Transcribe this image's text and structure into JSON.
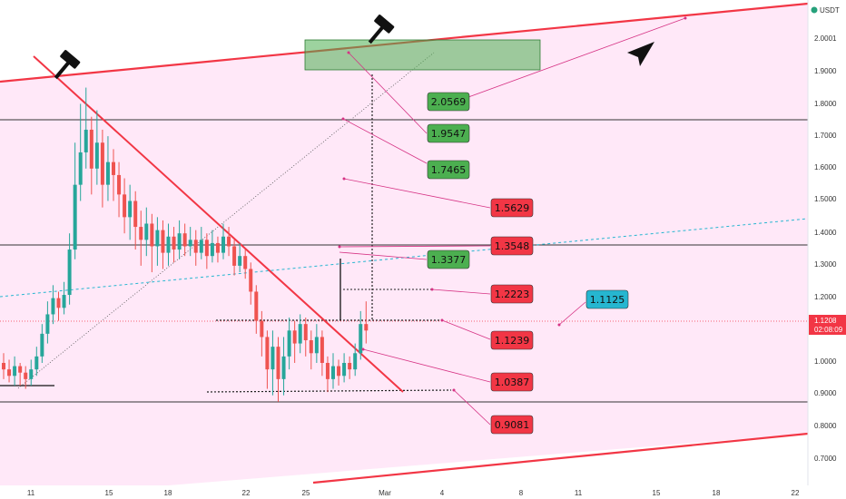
{
  "chart_data": {
    "type": "candlestick",
    "quote_unit": "USDT",
    "y_ticks": [
      "2.0001",
      "1.9000",
      "1.8000",
      "1.7000",
      "1.6000",
      "1.5000",
      "1.4000",
      "1.3000",
      "1.2000",
      "1.1000",
      "1.0000",
      "0.9000",
      "0.8000",
      "0.7000"
    ],
    "x_ticks": [
      "11",
      "15",
      "18",
      "22",
      "25",
      "Mar",
      "4",
      "8",
      "11",
      "15",
      "18",
      "22"
    ],
    "current_price": "1.1208",
    "countdown": "02:08:09",
    "price_labels": [
      {
        "text": "2.0569",
        "color": "#4caf50"
      },
      {
        "text": "1.9547",
        "color": "#4caf50"
      },
      {
        "text": "1.7465",
        "color": "#4caf50"
      },
      {
        "text": "1.5629",
        "color": "#f23645"
      },
      {
        "text": "1.3548",
        "color": "#f23645"
      },
      {
        "text": "1.3377",
        "color": "#4caf50"
      },
      {
        "text": "1.2223",
        "color": "#f23645"
      },
      {
        "text": "1.1125",
        "color": "#26b6d0"
      },
      {
        "text": "1.1239",
        "color": "#f23645"
      },
      {
        "text": "1.0387",
        "color": "#f23645"
      },
      {
        "text": "0.9081",
        "color": "#f23645"
      }
    ],
    "horizontal_levels": [
      1.75,
      1.355,
      0.873,
      0.922
    ],
    "target_zone": {
      "low": 1.9,
      "high": 1.995
    },
    "colors": {
      "up": "#26a69a",
      "down": "#ef5350",
      "channel": "#f23645",
      "background": "#ffe8f8",
      "highlight": "#4caf50"
    },
    "icons": [
      "gavel-icon",
      "gavel-icon",
      "arrow-cursor-icon"
    ],
    "candles": [
      [
        1.0,
        0.98,
        1.03,
        0.95
      ],
      [
        0.98,
        0.96,
        1.01,
        0.94
      ],
      [
        0.96,
        0.99,
        1.02,
        0.93
      ],
      [
        0.99,
        0.97,
        1.0,
        0.93
      ],
      [
        0.97,
        0.95,
        0.99,
        0.92
      ],
      [
        0.95,
        0.98,
        1.01,
        0.93
      ],
      [
        0.98,
        1.02,
        1.05,
        0.96
      ],
      [
        1.02,
        1.09,
        1.12,
        1.0
      ],
      [
        1.09,
        1.15,
        1.19,
        1.06
      ],
      [
        1.15,
        1.2,
        1.24,
        1.12
      ],
      [
        1.2,
        1.17,
        1.22,
        1.13
      ],
      [
        1.17,
        1.21,
        1.25,
        1.15
      ],
      [
        1.21,
        1.35,
        1.4,
        1.18
      ],
      [
        1.35,
        1.55,
        1.68,
        1.32
      ],
      [
        1.55,
        1.65,
        1.8,
        1.5
      ],
      [
        1.65,
        1.72,
        1.85,
        1.6
      ],
      [
        1.72,
        1.6,
        1.76,
        1.52
      ],
      [
        1.6,
        1.68,
        1.78,
        1.55
      ],
      [
        1.68,
        1.55,
        1.72,
        1.48
      ],
      [
        1.55,
        1.62,
        1.7,
        1.5
      ],
      [
        1.62,
        1.58,
        1.66,
        1.5
      ],
      [
        1.58,
        1.52,
        1.62,
        1.45
      ],
      [
        1.52,
        1.45,
        1.57,
        1.4
      ],
      [
        1.45,
        1.5,
        1.55,
        1.38
      ],
      [
        1.5,
        1.42,
        1.53,
        1.35
      ],
      [
        1.42,
        1.38,
        1.47,
        1.3
      ],
      [
        1.38,
        1.43,
        1.48,
        1.33
      ],
      [
        1.43,
        1.36,
        1.46,
        1.28
      ],
      [
        1.36,
        1.41,
        1.45,
        1.3
      ],
      [
        1.41,
        1.34,
        1.44,
        1.29
      ],
      [
        1.34,
        1.39,
        1.43,
        1.3
      ],
      [
        1.39,
        1.35,
        1.42,
        1.31
      ],
      [
        1.35,
        1.4,
        1.44,
        1.32
      ],
      [
        1.4,
        1.36,
        1.43,
        1.33
      ],
      [
        1.36,
        1.38,
        1.42,
        1.33
      ],
      [
        1.38,
        1.34,
        1.41,
        1.3
      ],
      [
        1.34,
        1.38,
        1.42,
        1.32
      ],
      [
        1.38,
        1.33,
        1.4,
        1.29
      ],
      [
        1.33,
        1.37,
        1.41,
        1.31
      ],
      [
        1.37,
        1.34,
        1.39,
        1.31
      ],
      [
        1.34,
        1.39,
        1.43,
        1.32
      ],
      [
        1.39,
        1.36,
        1.42,
        1.33
      ],
      [
        1.36,
        1.3,
        1.38,
        1.27
      ],
      [
        1.3,
        1.33,
        1.37,
        1.28
      ],
      [
        1.33,
        1.29,
        1.35,
        1.26
      ],
      [
        1.29,
        1.22,
        1.31,
        1.18
      ],
      [
        1.22,
        1.13,
        1.24,
        1.09
      ],
      [
        1.13,
        1.08,
        1.16,
        1.02
      ],
      [
        1.08,
        0.98,
        1.1,
        0.92
      ],
      [
        0.98,
        1.05,
        1.1,
        0.9
      ],
      [
        1.05,
        0.95,
        1.08,
        0.88
      ],
      [
        0.95,
        1.02,
        1.08,
        0.9
      ],
      [
        1.02,
        1.1,
        1.14,
        0.98
      ],
      [
        1.1,
        1.06,
        1.13,
        1.0
      ],
      [
        1.06,
        1.12,
        1.15,
        1.03
      ],
      [
        1.12,
        1.07,
        1.14,
        1.02
      ],
      [
        1.07,
        1.03,
        1.1,
        0.98
      ],
      [
        1.03,
        1.08,
        1.12,
        1.0
      ],
      [
        1.08,
        1.0,
        1.1,
        0.96
      ],
      [
        1.0,
        0.95,
        1.02,
        0.91
      ],
      [
        0.95,
        0.99,
        1.03,
        0.92
      ],
      [
        0.99,
        0.96,
        1.01,
        0.93
      ],
      [
        0.96,
        1.0,
        1.03,
        0.94
      ],
      [
        1.0,
        0.98,
        1.02,
        0.95
      ],
      [
        0.98,
        1.03,
        1.06,
        0.96
      ],
      [
        1.03,
        1.12,
        1.16,
        1.01
      ],
      [
        1.12,
        1.1,
        1.19,
        1.06
      ]
    ]
  }
}
